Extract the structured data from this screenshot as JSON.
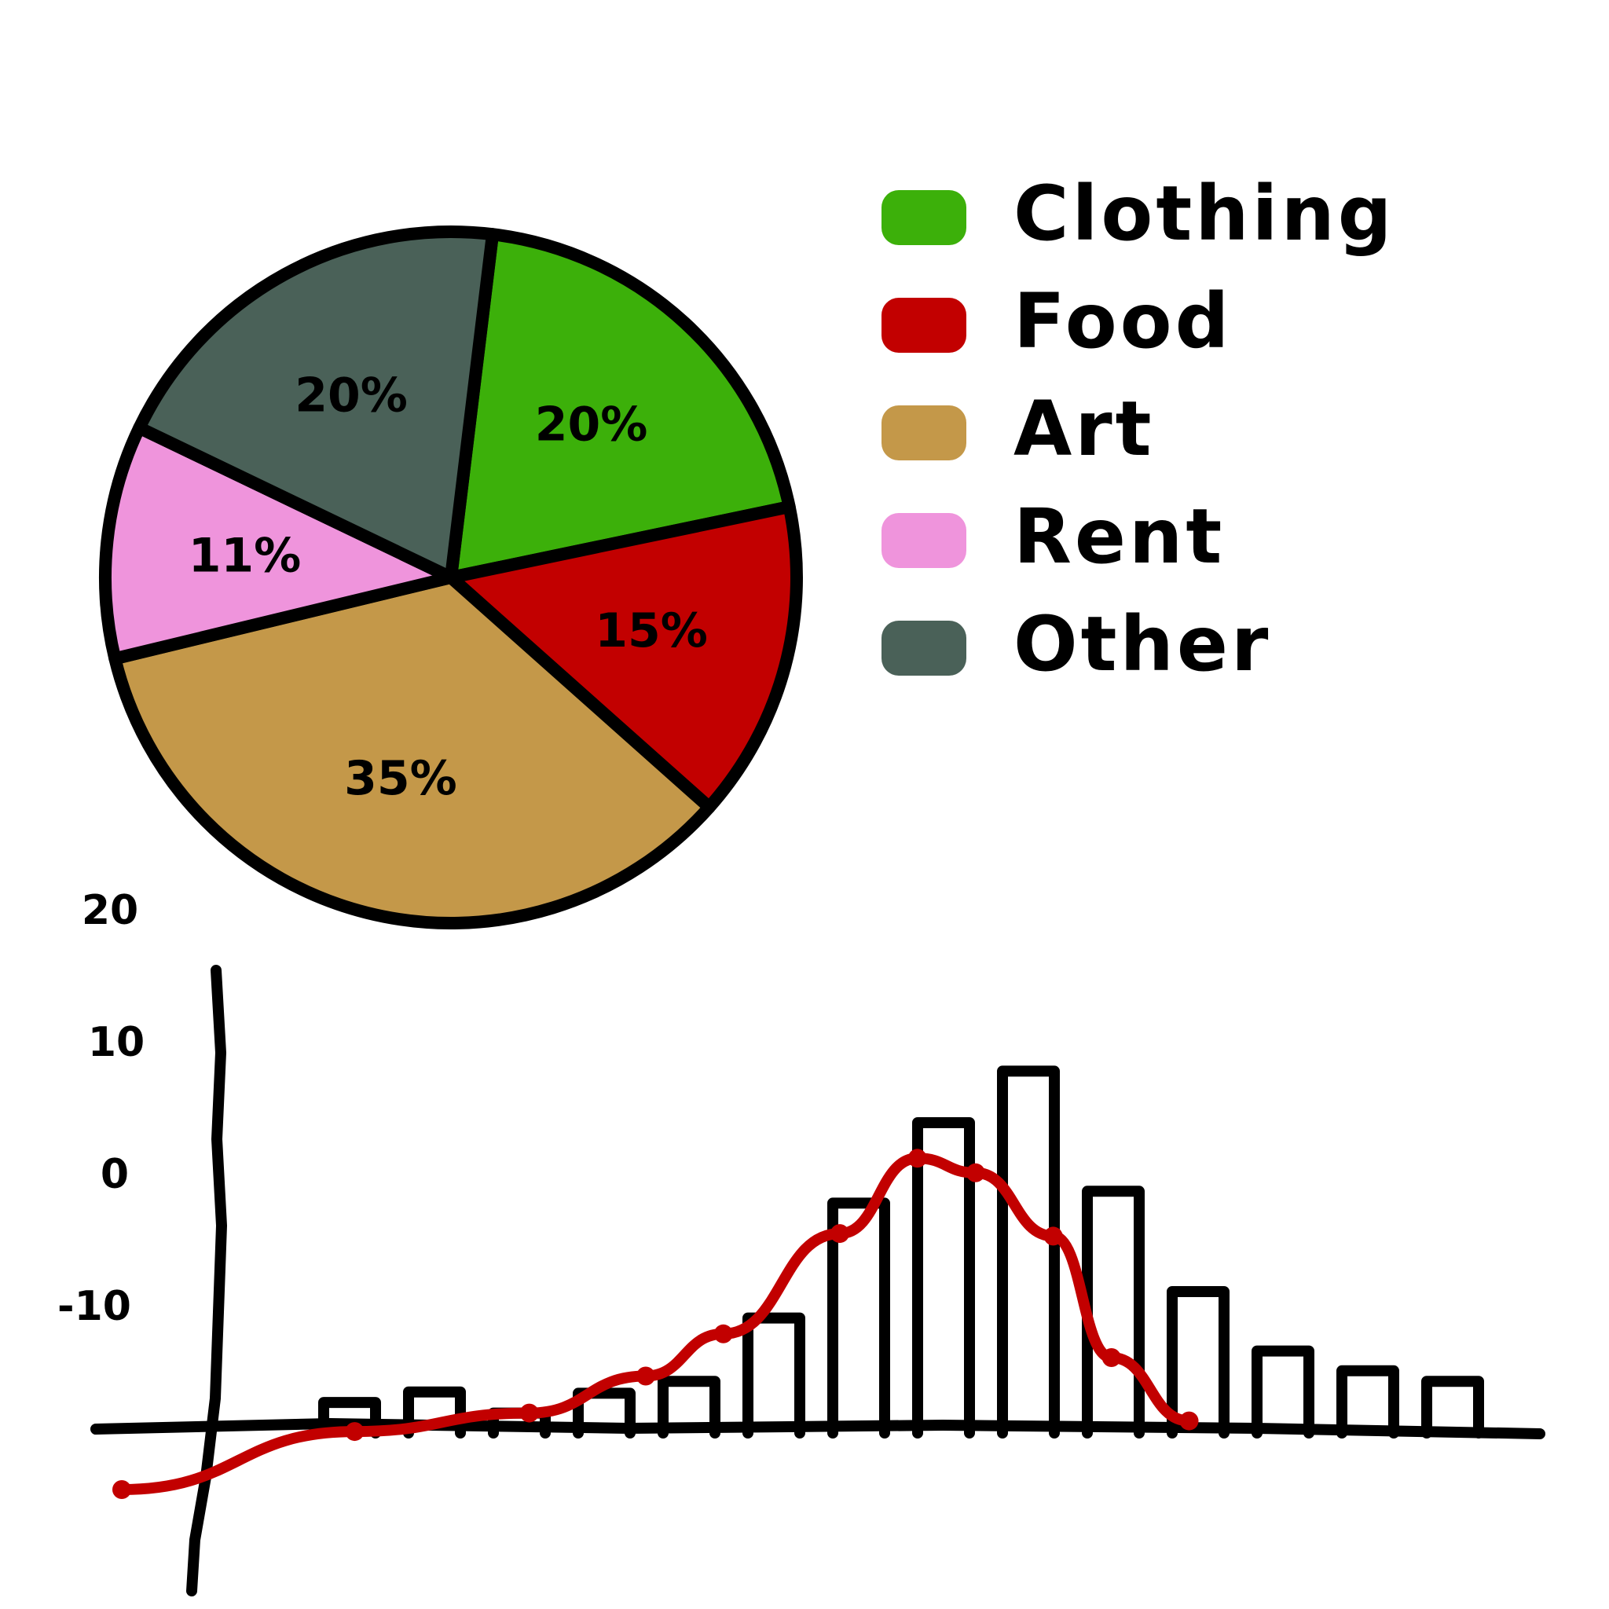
{
  "colors": {
    "clothing": "#3cb00a",
    "food": "#c20000",
    "art": "#c49849",
    "rent": "#ef94dc",
    "other": "#4a6158",
    "ink": "#000000",
    "curve": "#c20000"
  },
  "chart_data": [
    {
      "type": "pie",
      "slices": [
        {
          "label": "Clothing",
          "value": 20,
          "text": "20%",
          "color_key": "clothing"
        },
        {
          "label": "Food",
          "value": 15,
          "text": "15%",
          "color_key": "food"
        },
        {
          "label": "Art",
          "value": 35,
          "text": "35%",
          "color_key": "art"
        },
        {
          "label": "Rent",
          "value": 11,
          "text": "11%",
          "color_key": "rent"
        },
        {
          "label": "Other",
          "value": 20,
          "text": "20%",
          "color_key": "other"
        }
      ],
      "legend": {
        "placement": "right",
        "items": [
          "Clothing",
          "Food",
          "Art",
          "Rent",
          "Other"
        ]
      }
    },
    {
      "type": "bar",
      "y_ticks": [
        "20",
        "10",
        "0",
        "-10"
      ],
      "y_tick_values": [
        20,
        10,
        0,
        -10
      ],
      "ylim": [
        -25,
        30
      ],
      "values": [
        1.6,
        2.4,
        0.8,
        2.3,
        3.2,
        8.0,
        16.7,
        22.8,
        26.7,
        17.6,
        10.0,
        5.5,
        4.0,
        3.2
      ],
      "curve": {
        "x": [
          0,
          12,
          21,
          27,
          31,
          37,
          41,
          44,
          48,
          51,
          55
        ],
        "y": [
          -5,
          -0.6,
          0.8,
          3.6,
          6.8,
          14.4,
          20.1,
          19.0,
          14.2,
          5.0,
          0.2
        ]
      },
      "grid": false
    }
  ]
}
